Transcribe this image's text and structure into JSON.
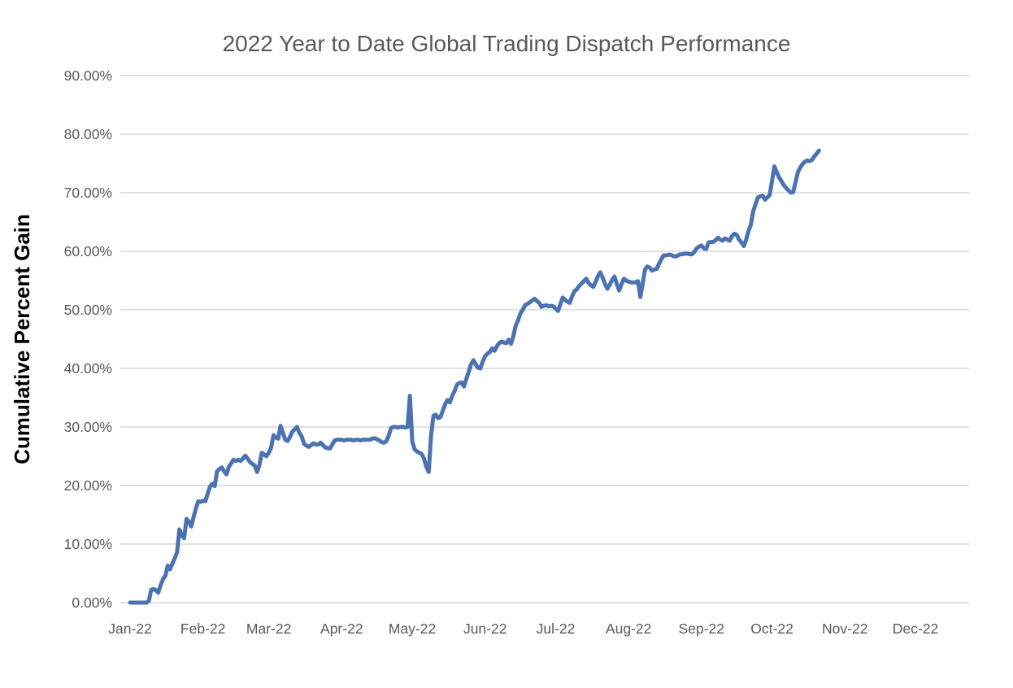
{
  "chart_data": {
    "type": "line",
    "title": "2022 Year to Date Global Trading Dispatch Performance",
    "ylabel": "Cumulative Percent Gain",
    "xlabel": "",
    "legend": "none",
    "grid": true,
    "line_color": "#4B73B2",
    "gridline_color": "#D9D9D9",
    "tick_label_color": "#595959",
    "title_color": "#595959",
    "ylim": [
      0,
      90
    ],
    "y_tick_labels": [
      "0.00%",
      "10.00%",
      "20.00%",
      "30.00%",
      "40.00%",
      "50.00%",
      "60.00%",
      "70.00%",
      "80.00%",
      "90.00%"
    ],
    "x_tick_labels": [
      "Jan-22",
      "Feb-22",
      "Mar-22",
      "Apr-22",
      "May-22",
      "Jun-22",
      "Jul-22",
      "Aug-22",
      "Sep-22",
      "Oct-22",
      "Nov-22",
      "Dec-22"
    ],
    "x_tick_positions_days": [
      0,
      31,
      59,
      90,
      120,
      151,
      181,
      212,
      243,
      273,
      304,
      334
    ],
    "x_axis_total_days": 364,
    "series": [
      {
        "name": "Cumulative Percent Gain",
        "start_date": "Jan-22",
        "frequency": "daily",
        "unit": "percent",
        "values": [
          0.0,
          0.0,
          0.0,
          0.0,
          0.0,
          0.0,
          0.0,
          0.0,
          0.3,
          2.2,
          2.3,
          2.1,
          1.7,
          3.0,
          4.0,
          4.6,
          6.3,
          5.7,
          6.7,
          7.6,
          8.6,
          12.5,
          11.5,
          11.0,
          14.3,
          13.8,
          13.0,
          14.6,
          16.1,
          17.3,
          17.2,
          17.4,
          17.3,
          18.6,
          19.8,
          20.3,
          19.9,
          22.4,
          22.8,
          23.1,
          22.4,
          21.9,
          23.2,
          23.8,
          24.4,
          24.2,
          24.4,
          24.2,
          24.6,
          25.1,
          24.6,
          24.0,
          23.7,
          23.4,
          22.3,
          23.5,
          25.6,
          25.3,
          25.0,
          25.6,
          26.5,
          28.6,
          28.2,
          28.0,
          30.2,
          29.0,
          27.8,
          27.6,
          28.3,
          29.2,
          29.6,
          30.0,
          29.0,
          28.4,
          27.1,
          26.8,
          26.6,
          26.9,
          27.2,
          27.0,
          27.0,
          27.3,
          26.9,
          26.5,
          26.4,
          26.3,
          27.0,
          27.7,
          27.8,
          27.8,
          27.8,
          27.7,
          27.8,
          27.8,
          27.8,
          27.7,
          27.8,
          27.8,
          27.7,
          27.8,
          27.8,
          27.8,
          27.8,
          28.0,
          28.1,
          27.9,
          27.7,
          27.4,
          27.3,
          27.6,
          28.5,
          29.8,
          30.0,
          30.0,
          29.9,
          30.0,
          30.0,
          29.9,
          30.0,
          35.3,
          27.5,
          26.2,
          25.8,
          25.6,
          25.4,
          24.6,
          23.2,
          22.3,
          28.5,
          31.9,
          32.1,
          31.5,
          31.7,
          32.8,
          33.9,
          34.6,
          34.2,
          35.3,
          36.1,
          37.2,
          37.5,
          37.6,
          36.9,
          38.2,
          39.4,
          40.7,
          41.4,
          40.7,
          40.1,
          40.0,
          41.2,
          42.1,
          42.5,
          42.8,
          43.4,
          43.0,
          43.8,
          44.3,
          44.6,
          44.4,
          44.3,
          44.9,
          44.2,
          45.5,
          47.3,
          48.2,
          49.4,
          50.0,
          50.8,
          51.0,
          51.3,
          51.6,
          51.9,
          51.5,
          51.2,
          50.5,
          50.7,
          50.8,
          50.6,
          50.7,
          50.6,
          50.2,
          49.8,
          51.0,
          52.1,
          51.7,
          51.4,
          51.2,
          52.3,
          53.2,
          53.5,
          54.1,
          54.5,
          54.9,
          55.3,
          54.6,
          54.2,
          53.9,
          54.8,
          55.8,
          56.4,
          55.5,
          54.4,
          53.6,
          54.3,
          55.1,
          55.7,
          54.4,
          53.3,
          54.4,
          55.3,
          55.0,
          54.8,
          54.7,
          54.7,
          54.7,
          54.9,
          52.2,
          54.5,
          56.9,
          57.4,
          57.2,
          56.7,
          56.9,
          57.0,
          57.9,
          58.7,
          59.3,
          59.3,
          59.4,
          59.4,
          59.2,
          59.1,
          59.3,
          59.5,
          59.5,
          59.6,
          59.6,
          59.5,
          59.5,
          59.9,
          60.5,
          60.8,
          61.0,
          60.5,
          60.4,
          61.5,
          61.6,
          61.6,
          61.9,
          62.3,
          62.0,
          61.8,
          62.2,
          62.0,
          61.8,
          62.6,
          63.0,
          62.8,
          62.0,
          61.5,
          60.9,
          62.0,
          63.5,
          64.5,
          66.8,
          68.0,
          69.2,
          69.4,
          69.5,
          68.8,
          69.2,
          69.6,
          72.0,
          74.5,
          73.5,
          72.6,
          72.0,
          71.3,
          70.8,
          70.4,
          70.0,
          70.1,
          71.8,
          73.5,
          74.3,
          74.9,
          75.3,
          75.5,
          75.4,
          75.6,
          76.2,
          76.7,
          77.2
        ]
      }
    ]
  }
}
